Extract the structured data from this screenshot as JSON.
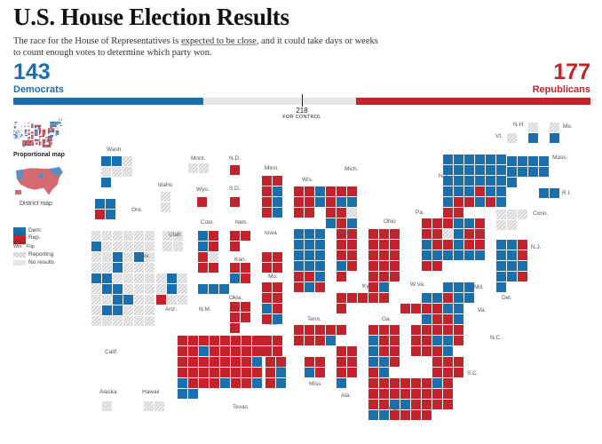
{
  "header": {
    "title": "U.S. House Election Results",
    "deck_before": "The race for the House of Representatives is ",
    "deck_link": "expected to be close",
    "deck_after": ", and it could take days or weeks to count enough votes to determine which party won."
  },
  "tally": {
    "dem_seats": "143",
    "dem_label": "Democrats",
    "rep_seats": "177",
    "rep_label": "Republicans",
    "control_number": "218",
    "control_label": "FOR CONTROL",
    "total_seats": 435
  },
  "colors": {
    "dem": "#1a6faf",
    "rep": "#c4232c",
    "pending": "#e6e6e6",
    "reporting": "#cfcfcf",
    "flip_dem": "#0d4f83",
    "flip_rep": "#8f1016"
  },
  "views": {
    "proportional_label": "Proportional map",
    "district_label": "District map"
  },
  "legend": {
    "dem": "Dem.",
    "rep": "Rep.",
    "win": "Win",
    "flip": "Flip",
    "reporting": "Reporting",
    "no_results": "No results"
  },
  "states": [
    {
      "name": "Wash.",
      "tiles": "DDHHHHD"
    },
    {
      "name": "Ore.",
      "tiles": "DDRD"
    },
    {
      "name": "Calif.",
      "tiles": "HHHHHHDHHHDHHHDHDHHHDHHHDDHHHHHDDHHHHHDDHHHDDHHHHHHHHH"
    },
    {
      "name": "Idaho",
      "tiles": "HH"
    },
    {
      "name": "Nev.",
      "tiles": "HHHH"
    },
    {
      "name": "Utah",
      "tiles": "HHHH"
    },
    {
      "name": "Ariz.",
      "tiles": "HDHHDHRHH"
    },
    {
      "name": "Mont.",
      "tiles": "HH"
    },
    {
      "name": "Wyo.",
      "tiles": "R"
    },
    {
      "name": "Colo.",
      "tiles": "DRDRRHRR"
    },
    {
      "name": "N.M.",
      "tiles": "DDD"
    },
    {
      "name": "N.D.",
      "tiles": "R"
    },
    {
      "name": "S.D.",
      "tiles": "R"
    },
    {
      "name": "Neb.",
      "tiles": "RRR"
    },
    {
      "name": "Kan.",
      "tiles": "RRDR"
    },
    {
      "name": "Okla.",
      "tiles": "RRRRR"
    },
    {
      "name": "Texas",
      "tiles": "RRRRRRRRRRDRRRRRRRRRRRRDRRRRRRRRDRRRDRRDDD"
    },
    {
      "name": "Minn.",
      "tiles": "RRRDRDRD"
    },
    {
      "name": "Iowa",
      "tiles": "RRRR"
    },
    {
      "name": "Mo.",
      "tiles": "RRRRDRRD"
    },
    {
      "name": "Ark.",
      "tiles": "RRRR"
    },
    {
      "name": "La.",
      "tiles": "RRRDRD"
    },
    {
      "name": "Wis.",
      "tiles": "RRDRRDRR"
    },
    {
      "name": "Ill.",
      "tiles": "DDDDDDDDDDDDRRDRDR"
    },
    {
      "name": "Mich.",
      "tiles": "RRRRDDRRHDRD"
    },
    {
      "name": "Ind.",
      "tiles": "RRRRRRDRR"
    },
    {
      "name": "Ohio",
      "tiles": "RRRRRRRRRRRRRRRRD"
    },
    {
      "name": "Ky.",
      "tiles": "RRRRRR"
    },
    {
      "name": "Tenn.",
      "tiles": "RRRRRRRRD"
    },
    {
      "name": "Miss.",
      "tiles": "RRDR"
    },
    {
      "name": "Ala.",
      "tiles": "RRRRRRD"
    },
    {
      "name": "Ga.",
      "tiles": "RRRDRRDRRDDRRD"
    },
    {
      "name": "Fla.",
      "tiles": "RRRRRRRRRRRRRRRRRRDDRRRRDDRRRR"
    },
    {
      "name": "S.C.",
      "tiles": "RRRRRRD"
    },
    {
      "name": "N.C.",
      "tiles": "RRRRRRRDDRRRRD"
    },
    {
      "name": "Va.",
      "tiles": "DDRDRRDDDRRD"
    },
    {
      "name": "W.Va.",
      "tiles": "RR"
    },
    {
      "name": "Md.",
      "tiles": "DDDRDDD"
    },
    {
      "name": "Del.",
      "tiles": "D"
    },
    {
      "name": "Pa.",
      "tiles": "RRRDDRRRHDRRDRRDRRDDDDDDRR"
    },
    {
      "name": "N.J.",
      "tiles": "DDRDDRDDDDDR"
    },
    {
      "name": "N.Y.",
      "tiles": "DDDDDDDDDDDDDDDDDDDDDRDDDRRDRDRR"
    },
    {
      "name": "Conn.",
      "tiles": "HHHHH"
    },
    {
      "name": "R.I.",
      "tiles": "DD"
    },
    {
      "name": "Mass.",
      "tiles": "DDDDDDDDD"
    },
    {
      "name": "Vt.",
      "tiles": "H"
    },
    {
      "name": "N.H.",
      "tiles": "HD"
    },
    {
      "name": "Me.",
      "tiles": "HD"
    },
    {
      "name": "Alaska",
      "tiles": "H"
    },
    {
      "name": "Hawaii",
      "tiles": "HH"
    }
  ]
}
